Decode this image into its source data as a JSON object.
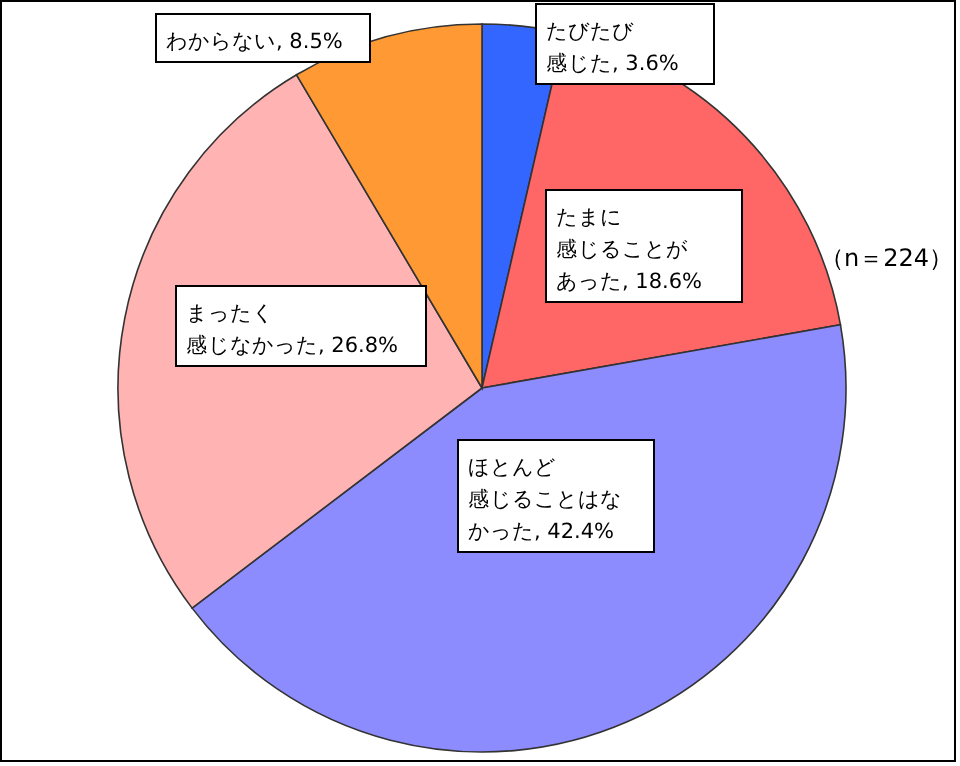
{
  "chart_data": {
    "type": "pie",
    "categories": [
      "たびたび感じた",
      "たまに感じることがあった",
      "ほとんど感じることはなかった",
      "まったく感じなかった",
      "わからない"
    ],
    "values": [
      3.6,
      18.6,
      42.4,
      26.8,
      8.5
    ],
    "value_labels": [
      "3.6%",
      "18.6%",
      "42.4%",
      "26.8%",
      "8.5%"
    ],
    "colors": [
      "#3366ff",
      "#ff6666",
      "#8c8cff",
      "#ffb3b3",
      "#ff9933"
    ],
    "annotations": [
      "（n＝224）"
    ]
  }
}
